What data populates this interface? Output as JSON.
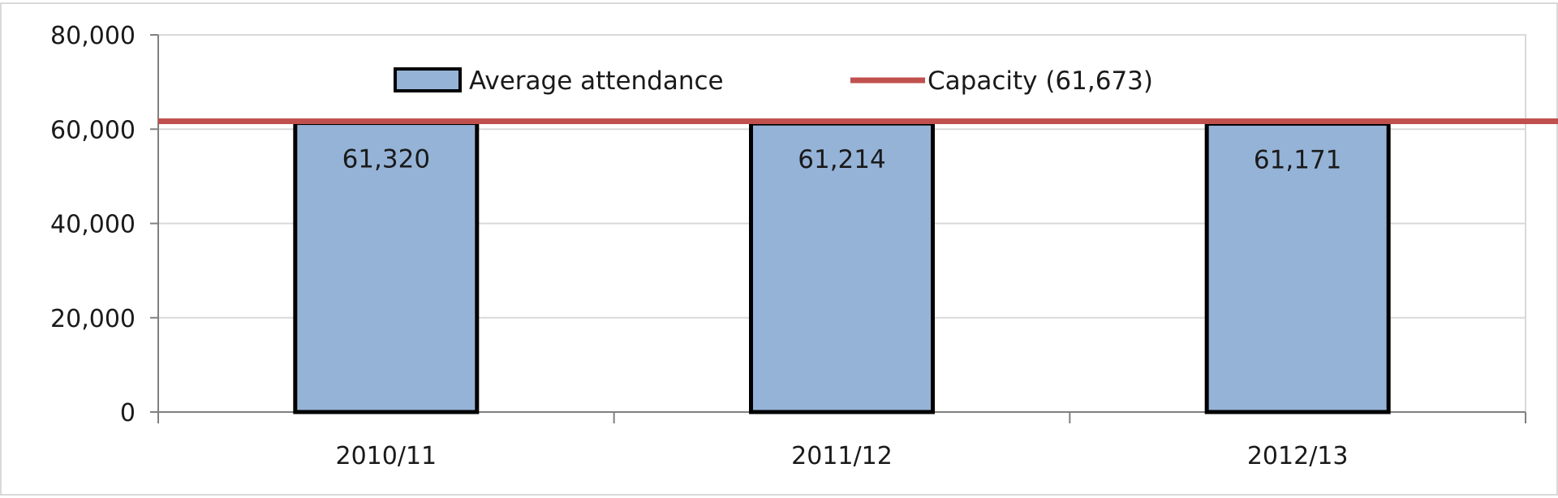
{
  "chart_data": {
    "type": "bar",
    "categories": [
      "2010/11",
      "2011/12",
      "2012/13"
    ],
    "series": [
      {
        "name": "Average attendance",
        "values": [
          61320,
          61214,
          61171
        ],
        "value_labels": [
          "61,320",
          "61,214",
          "61,171"
        ],
        "color": "#95B3D7",
        "edge_color": "#000000"
      }
    ],
    "reference_line": {
      "name": "Capacity (61,673)",
      "value": 61673,
      "color": "#C0504D"
    },
    "ylim": [
      0,
      80000
    ],
    "y_ticks": [
      0,
      20000,
      40000,
      60000,
      80000
    ],
    "y_tick_labels": [
      "0",
      "20,000",
      "40,000",
      "60,000",
      "80,000"
    ],
    "grid": true,
    "legend_position": "top-center",
    "title": "",
    "xlabel": "",
    "ylabel": ""
  }
}
